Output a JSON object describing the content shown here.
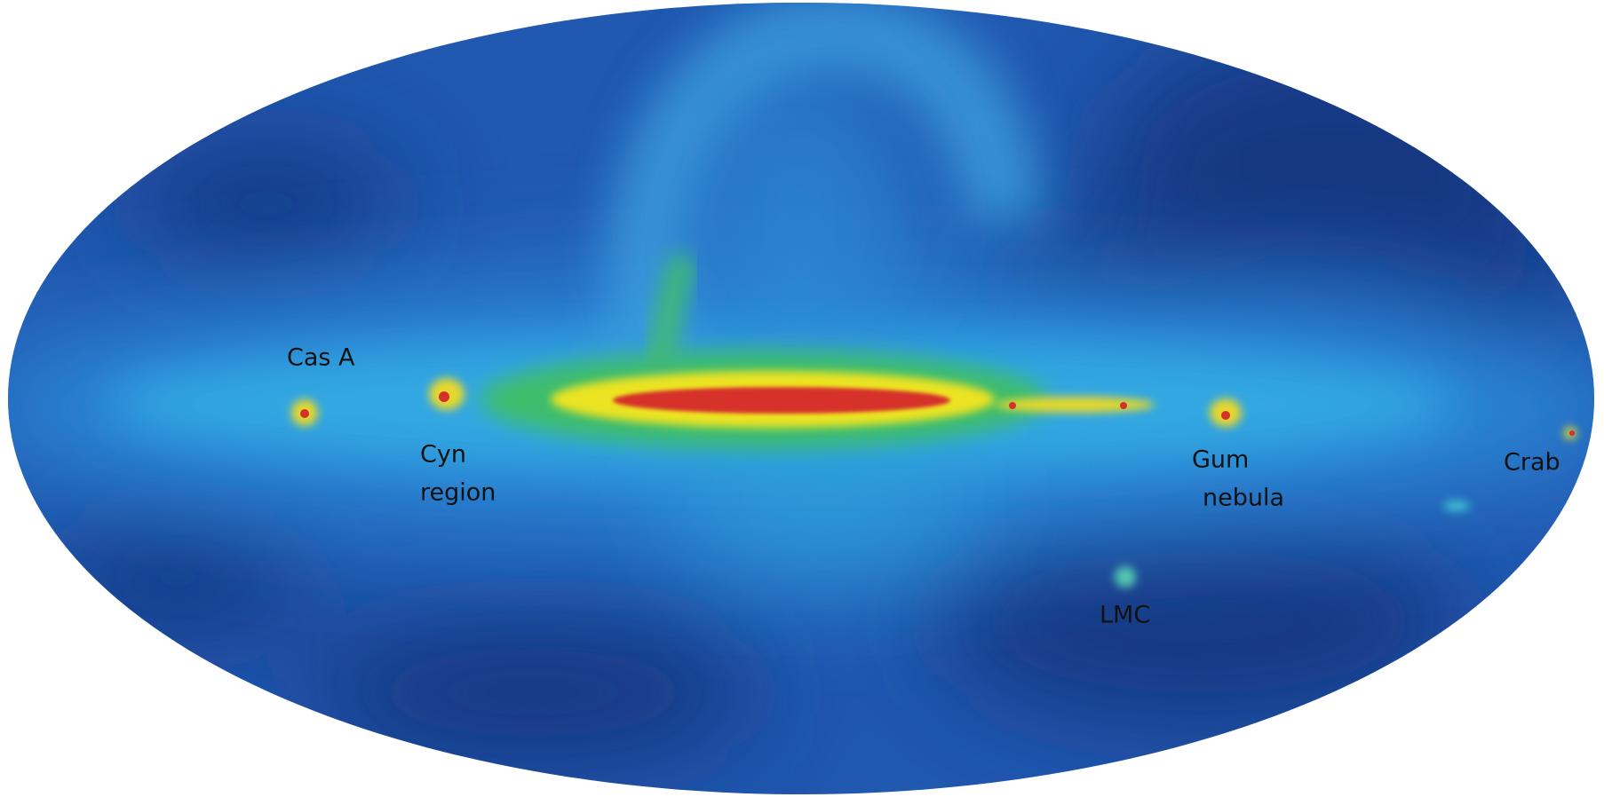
{
  "labels": [
    {
      "lines": [
        "Cas A"
      ]
    },
    {
      "lines": [
        "Cyn",
        "region"
      ]
    },
    {
      "lines": [
        "Gum",
        "nebula"
      ]
    },
    {
      "lines": [
        "Crab"
      ]
    },
    {
      "lines": [
        "LMC"
      ]
    }
  ]
}
